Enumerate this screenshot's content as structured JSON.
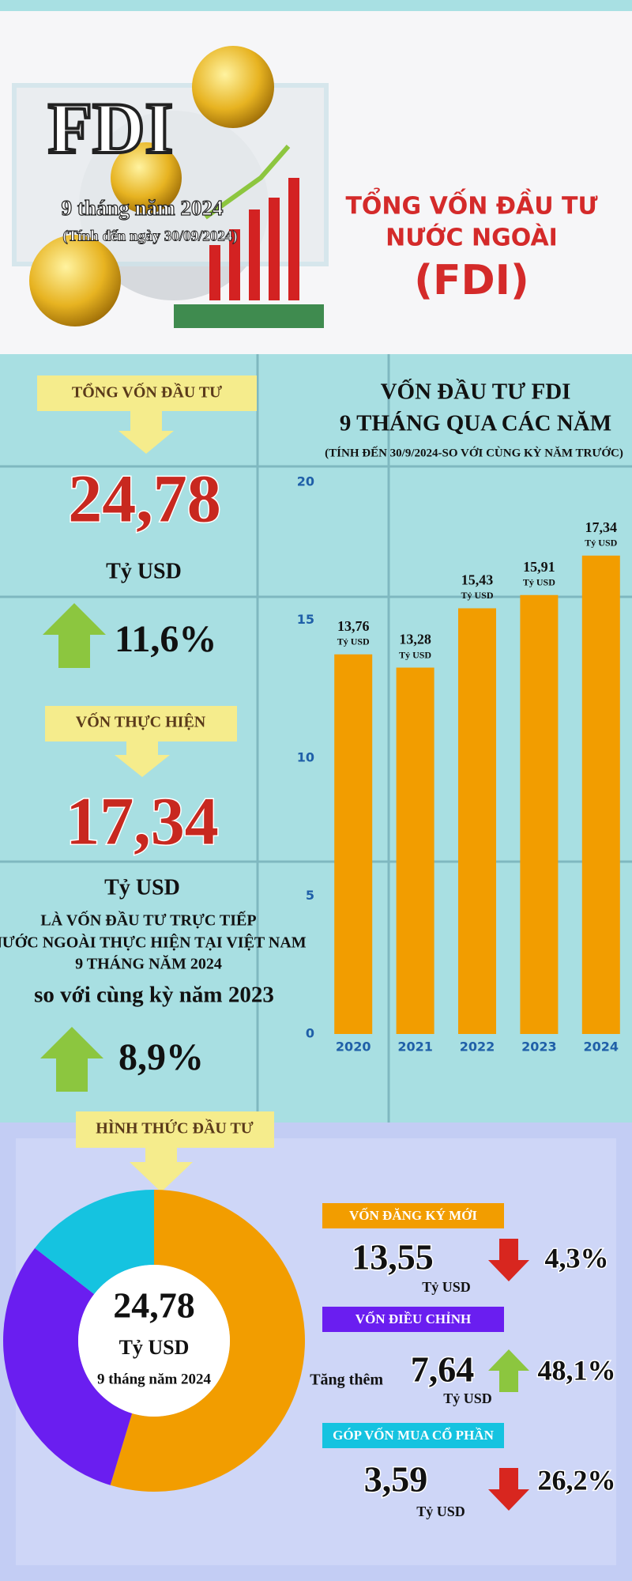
{
  "header": {
    "title": "FDI",
    "period": "9 tháng năm 2024",
    "as_of": "(Tính đến ngày 30/09/2024)",
    "headline": [
      "TỔNG VỐN ĐẦU TƯ",
      "NƯỚC NGOÀI",
      "(FDI)"
    ]
  },
  "summary": {
    "total_label": "TỔNG VỐN ĐẦU TƯ",
    "total_value": "24,78",
    "unit": "Tỷ USD",
    "total_change": "11,6%",
    "realized_label": "VỐN THỰC HIỆN",
    "realized_value": "17,34",
    "realized_desc": [
      "LÀ VỐN ĐẦU TƯ TRỰC TIẾP",
      "NƯỚC NGOÀI THỰC HIỆN TẠI VIỆT NAM",
      "9 THÁNG NĂM 2024"
    ],
    "compare": "so với cùng kỳ năm 2023",
    "realized_change": "8,9%",
    "form_label": "HÌNH THỨC ĐẦU TƯ"
  },
  "chart_data": [
    {
      "type": "bar",
      "title": [
        "VỐN ĐẦU TƯ FDI",
        "9 THÁNG QUA CÁC NĂM"
      ],
      "subtitle": "(TÍNH ĐẾN 30/9/2024-SO VỚI CÙNG KỲ NĂM TRƯỚC)",
      "categories": [
        "2020",
        "2021",
        "2022",
        "2023",
        "2024"
      ],
      "values": [
        13.76,
        13.28,
        15.43,
        15.91,
        17.34
      ],
      "value_labels": [
        "13,76",
        "13,28",
        "15,43",
        "15,91",
        "17,34"
      ],
      "value_unit": "Tỷ USD",
      "color": "#f29d00",
      "ylim": [
        0,
        20
      ],
      "yticks": [
        0,
        5,
        10,
        15,
        20
      ],
      "grid": false
    },
    {
      "type": "donut",
      "categories": [
        "VỐN ĐĂNG KÝ MỚI",
        "VỐN ĐIỀU CHỈNH",
        "GÓP VỐN MUA CỔ PHẦN"
      ],
      "values": [
        13.55,
        7.64,
        3.59
      ],
      "value_labels": [
        "13,55",
        "7,64",
        "3,59"
      ],
      "colors": [
        "#f29d00",
        "#6a1ef0",
        "#15c3e0"
      ],
      "value_unit": "Tỷ USD",
      "value_prefixes": [
        null,
        "Tăng thêm",
        null
      ],
      "changes": [
        "4,3%",
        "48,1%",
        "26,2%"
      ],
      "change_directions": [
        "down",
        "up",
        "down"
      ],
      "center": {
        "value": "24,78",
        "unit": "Tỷ USD",
        "note": "9 tháng năm 2024"
      }
    }
  ]
}
